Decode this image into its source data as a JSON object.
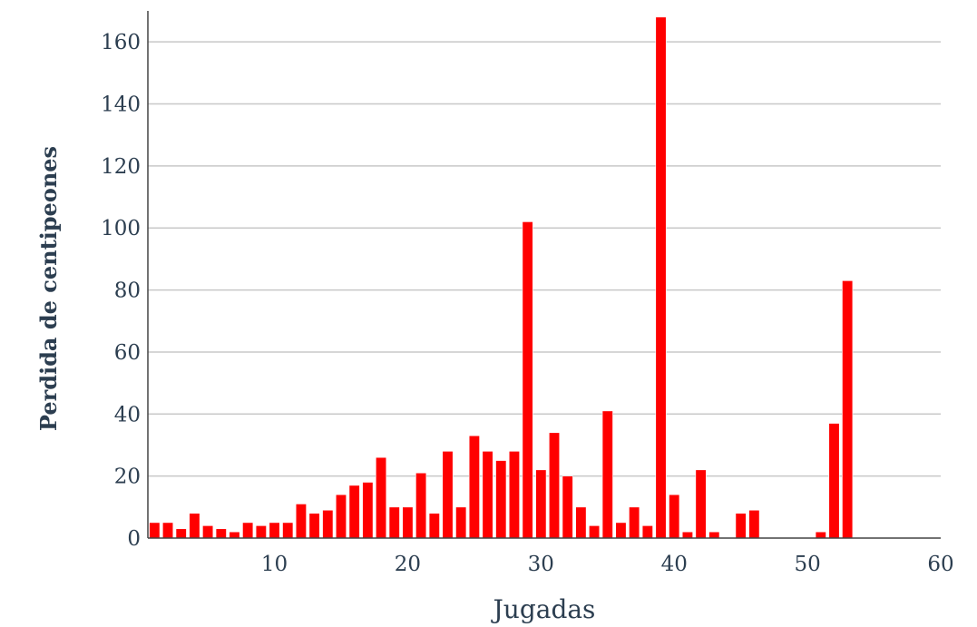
{
  "chart_data": {
    "type": "bar",
    "title": "",
    "xlabel": "Jugadas",
    "ylabel": "Perdida de centipeones",
    "xlim": [
      0.5,
      60
    ],
    "ylim": [
      0,
      170
    ],
    "x_ticks": [
      10,
      20,
      30,
      40,
      50,
      60
    ],
    "y_ticks": [
      0,
      20,
      40,
      60,
      80,
      100,
      120,
      140,
      160
    ],
    "grid": true,
    "color": "#ff0000",
    "x": [
      1,
      2,
      3,
      4,
      5,
      6,
      7,
      8,
      9,
      10,
      11,
      12,
      13,
      14,
      15,
      16,
      17,
      18,
      19,
      20,
      21,
      22,
      23,
      24,
      25,
      26,
      27,
      28,
      29,
      30,
      31,
      32,
      33,
      34,
      35,
      36,
      37,
      38,
      39,
      40,
      41,
      42,
      43,
      44,
      45,
      46,
      47,
      48,
      49,
      50,
      51,
      52,
      53
    ],
    "values": [
      5,
      5,
      3,
      8,
      4,
      3,
      2,
      5,
      4,
      5,
      5,
      11,
      8,
      9,
      14,
      17,
      18,
      26,
      10,
      10,
      21,
      8,
      28,
      10,
      33,
      28,
      25,
      28,
      102,
      22,
      34,
      20,
      10,
      4,
      41,
      5,
      10,
      4,
      168,
      14,
      2,
      22,
      2,
      0,
      8,
      9,
      0,
      0,
      0,
      0,
      2,
      37,
      83
    ]
  }
}
